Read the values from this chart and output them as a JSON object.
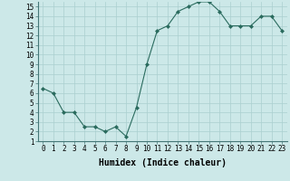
{
  "x": [
    0,
    1,
    2,
    3,
    4,
    5,
    6,
    7,
    8,
    9,
    10,
    11,
    12,
    13,
    14,
    15,
    16,
    17,
    18,
    19,
    20,
    21,
    22,
    23
  ],
  "y": [
    6.5,
    6.0,
    4.0,
    4.0,
    2.5,
    2.5,
    2.0,
    2.5,
    1.5,
    4.5,
    9.0,
    12.5,
    13.0,
    14.5,
    15.0,
    15.5,
    15.5,
    14.5,
    13.0,
    13.0,
    13.0,
    14.0,
    14.0,
    12.5
  ],
  "xlabel": "Humidex (Indice chaleur)",
  "ylabel": "",
  "line_color": "#2a6b5e",
  "marker": "D",
  "marker_size": 2.0,
  "bg_color": "#cce8e8",
  "grid_color": "#aacfcf",
  "xlim": [
    -0.5,
    23.5
  ],
  "ylim": [
    1,
    15.5
  ],
  "yticks": [
    1,
    2,
    3,
    4,
    5,
    6,
    7,
    8,
    9,
    10,
    11,
    12,
    13,
    14,
    15
  ],
  "xticks": [
    0,
    1,
    2,
    3,
    4,
    5,
    6,
    7,
    8,
    9,
    10,
    11,
    12,
    13,
    14,
    15,
    16,
    17,
    18,
    19,
    20,
    21,
    22,
    23
  ],
  "tick_fontsize": 5.5,
  "xlabel_fontsize": 7.0,
  "linewidth": 0.8
}
